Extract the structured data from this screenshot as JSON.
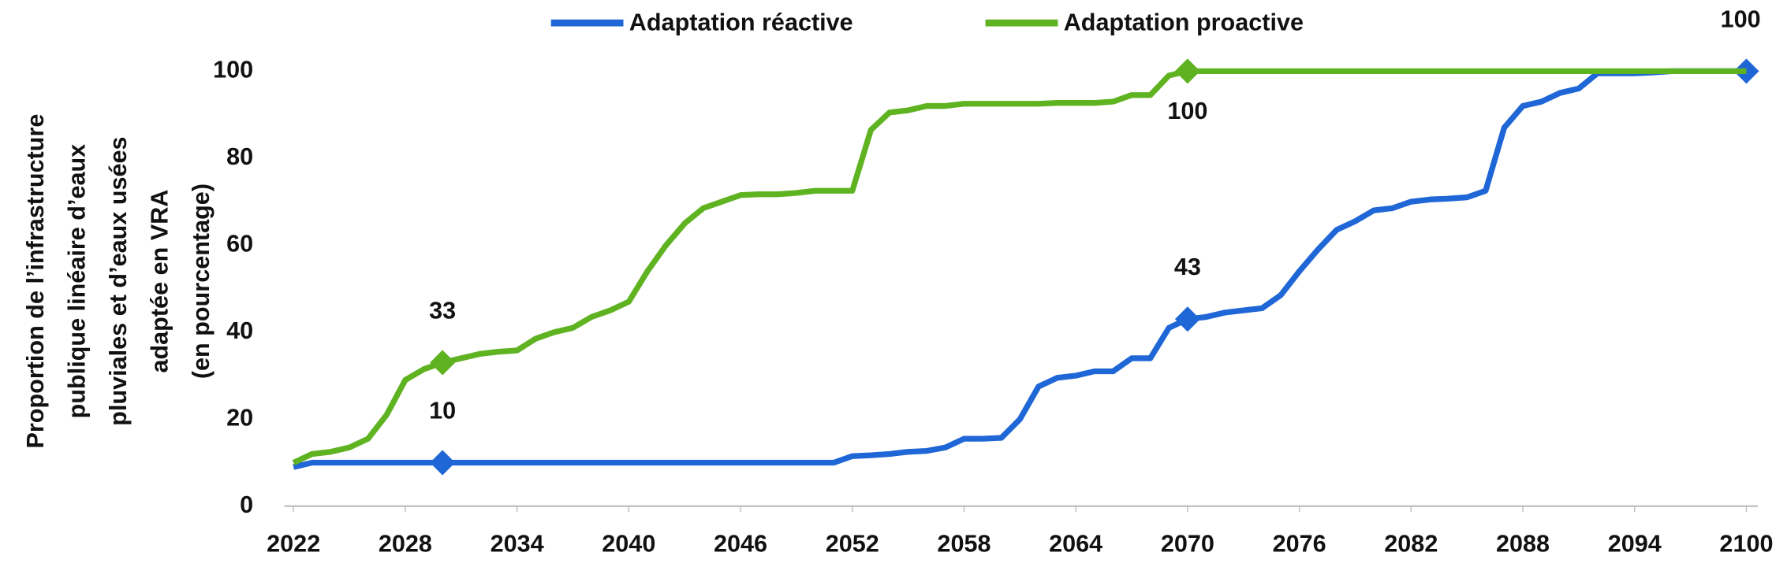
{
  "chart_data": {
    "type": "line",
    "ylabel": [
      "Proportion de l’infrastructure",
      "publique linéaire d’eaux",
      "pluviales et d’eaux usées",
      "adaptée en VRA",
      "(en pourcentage)"
    ],
    "x": [
      2022,
      2023,
      2024,
      2025,
      2026,
      2027,
      2028,
      2029,
      2030,
      2031,
      2032,
      2033,
      2034,
      2035,
      2036,
      2037,
      2038,
      2039,
      2040,
      2041,
      2042,
      2043,
      2044,
      2045,
      2046,
      2047,
      2048,
      2049,
      2050,
      2051,
      2052,
      2053,
      2054,
      2055,
      2056,
      2057,
      2058,
      2059,
      2060,
      2061,
      2062,
      2063,
      2064,
      2065,
      2066,
      2067,
      2068,
      2069,
      2070,
      2071,
      2072,
      2073,
      2074,
      2075,
      2076,
      2077,
      2078,
      2079,
      2080,
      2081,
      2082,
      2083,
      2084,
      2085,
      2086,
      2087,
      2088,
      2089,
      2090,
      2091,
      2092,
      2093,
      2094,
      2095,
      2096,
      2097,
      2098,
      2099,
      2100
    ],
    "xlim": [
      2022,
      2100
    ],
    "xticks": [
      2022,
      2028,
      2034,
      2040,
      2046,
      2052,
      2058,
      2064,
      2070,
      2076,
      2082,
      2088,
      2094,
      2100
    ],
    "ylim": [
      0,
      100
    ],
    "yticks": [
      0,
      20,
      40,
      60,
      80,
      100
    ],
    "grid": false,
    "legend": "top",
    "series": [
      {
        "name": "Adaptation réactive",
        "color": "#1f66d6",
        "values": [
          9,
          10,
          10,
          10,
          10,
          10,
          10,
          10,
          10,
          10,
          10,
          10,
          10,
          10,
          10,
          10,
          10,
          10,
          10,
          10,
          10,
          10,
          10,
          10,
          10,
          10,
          10,
          10,
          10,
          10,
          11.5,
          11.7,
          12,
          12.5,
          12.7,
          13.5,
          15.5,
          15.5,
          15.7,
          20,
          27.5,
          29.5,
          30,
          31,
          31,
          34,
          34,
          41,
          43,
          43.5,
          44.5,
          45,
          45.5,
          48.5,
          54,
          59,
          63.5,
          65.5,
          68,
          68.5,
          70,
          70.5,
          70.7,
          71,
          72.5,
          87,
          92,
          93,
          95,
          96,
          99.5,
          99.5,
          99.5,
          99.7,
          100,
          100,
          100,
          100,
          100
        ],
        "markers": [
          {
            "x": 2030,
            "y": 10
          },
          {
            "x": 2070,
            "y": 43
          },
          {
            "x": 2100,
            "y": 100
          }
        ]
      },
      {
        "name": "Adaptation proactive",
        "color": "#5fb321",
        "values": [
          10,
          12,
          12.5,
          13.5,
          15.5,
          21,
          29,
          31.5,
          33,
          34,
          35,
          35.5,
          35.8,
          38.5,
          40,
          41,
          43.5,
          45,
          47,
          54,
          60,
          65,
          68.5,
          70,
          71.5,
          71.7,
          71.7,
          72,
          72.5,
          72.5,
          72.5,
          86.5,
          90.5,
          91,
          92,
          92,
          92.5,
          92.5,
          92.5,
          92.5,
          92.5,
          92.7,
          92.7,
          92.7,
          93,
          94.5,
          94.5,
          99,
          100,
          100,
          100,
          100,
          100,
          100,
          100,
          100,
          100,
          100,
          100,
          100,
          100,
          100,
          100,
          100,
          100,
          100,
          100,
          100,
          100,
          100,
          100,
          100,
          100,
          100,
          100,
          100,
          100,
          100,
          100
        ],
        "markers": [
          {
            "x": 2030,
            "y": 33
          },
          {
            "x": 2070,
            "y": 100,
            "label_position": "below"
          }
        ]
      }
    ]
  }
}
